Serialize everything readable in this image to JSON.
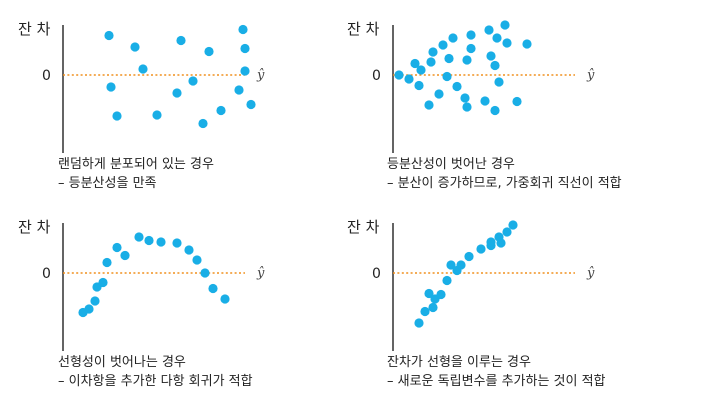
{
  "axis_text": {
    "y_label": "잔 차",
    "zero": "0",
    "x_label": "ŷ"
  },
  "colors": {
    "point": "#19aee6",
    "reference_line": "#f0901e",
    "axis": "#111111"
  },
  "chart_data": [
    {
      "type": "scatter",
      "caption": [
        "랜덤하게 분포되어 있는 경우",
        "– 등분산성을 만족"
      ],
      "points": [
        [
          0.23,
          0.79
        ],
        [
          0.24,
          -0.24
        ],
        [
          0.27,
          -0.82
        ],
        [
          0.36,
          0.56
        ],
        [
          0.4,
          0.12
        ],
        [
          0.47,
          -0.8
        ],
        [
          0.57,
          -0.36
        ],
        [
          0.59,
          0.69
        ],
        [
          0.65,
          -0.12
        ],
        [
          0.7,
          -0.97
        ],
        [
          0.73,
          0.47
        ],
        [
          0.79,
          -0.71
        ],
        [
          0.88,
          -0.3
        ],
        [
          0.9,
          0.91
        ],
        [
          0.91,
          0.53
        ],
        [
          0.91,
          0.08
        ],
        [
          0.94,
          -0.59
        ]
      ]
    },
    {
      "type": "scatter",
      "caption": [
        "등분산성이 벗어난 경우",
        "– 분산이 증가하므로, 가중회귀 직선이 적합"
      ],
      "points": [
        [
          0.03,
          0.0
        ],
        [
          0.08,
          -0.08
        ],
        [
          0.11,
          0.23
        ],
        [
          0.13,
          -0.21
        ],
        [
          0.14,
          0.1
        ],
        [
          0.18,
          -0.6
        ],
        [
          0.19,
          0.26
        ],
        [
          0.2,
          0.46
        ],
        [
          0.23,
          -0.38
        ],
        [
          0.25,
          0.6
        ],
        [
          0.27,
          -0.03
        ],
        [
          0.28,
          0.33
        ],
        [
          0.3,
          0.74
        ],
        [
          0.32,
          -0.23
        ],
        [
          0.36,
          -0.46
        ],
        [
          0.37,
          0.3
        ],
        [
          0.37,
          -0.64
        ],
        [
          0.39,
          0.8
        ],
        [
          0.39,
          0.53
        ],
        [
          0.46,
          -0.52
        ],
        [
          0.48,
          0.9
        ],
        [
          0.49,
          0.38
        ],
        [
          0.51,
          -0.71
        ],
        [
          0.51,
          0.19
        ],
        [
          0.52,
          0.74
        ],
        [
          0.53,
          -0.14
        ],
        [
          0.56,
          1.0
        ],
        [
          0.57,
          0.64
        ],
        [
          0.62,
          -0.53
        ],
        [
          0.67,
          0.62
        ]
      ]
    },
    {
      "type": "scatter",
      "caption": [
        "선형성이 벗어나는 경우",
        "– 이차항을 추가한 다항 회귀가 적합"
      ],
      "points": [
        [
          0.1,
          -0.79
        ],
        [
          0.13,
          -0.72
        ],
        [
          0.16,
          -0.56
        ],
        [
          0.17,
          -0.28
        ],
        [
          0.2,
          -0.19
        ],
        [
          0.22,
          0.21
        ],
        [
          0.27,
          0.51
        ],
        [
          0.31,
          0.35
        ],
        [
          0.38,
          0.72
        ],
        [
          0.43,
          0.65
        ],
        [
          0.49,
          0.62
        ],
        [
          0.57,
          0.6
        ],
        [
          0.63,
          0.46
        ],
        [
          0.67,
          0.26
        ],
        [
          0.71,
          0.0
        ],
        [
          0.75,
          -0.31
        ],
        [
          0.81,
          -0.52
        ]
      ]
    },
    {
      "type": "scatter",
      "caption": [
        "잔차가 선형을 이루는 경우",
        "– 새로운 독립변수를 추가하는 것이 적합"
      ],
      "points": [
        [
          0.13,
          -1.0
        ],
        [
          0.16,
          -0.77
        ],
        [
          0.18,
          -0.41
        ],
        [
          0.2,
          -0.69
        ],
        [
          0.21,
          -0.52
        ],
        [
          0.24,
          -0.43
        ],
        [
          0.27,
          -0.15
        ],
        [
          0.29,
          0.16
        ],
        [
          0.32,
          0.05
        ],
        [
          0.34,
          0.16
        ],
        [
          0.38,
          0.33
        ],
        [
          0.44,
          0.48
        ],
        [
          0.49,
          0.55
        ],
        [
          0.49,
          0.62
        ],
        [
          0.53,
          0.72
        ],
        [
          0.54,
          0.6
        ],
        [
          0.57,
          0.82
        ],
        [
          0.6,
          0.96
        ]
      ]
    }
  ]
}
